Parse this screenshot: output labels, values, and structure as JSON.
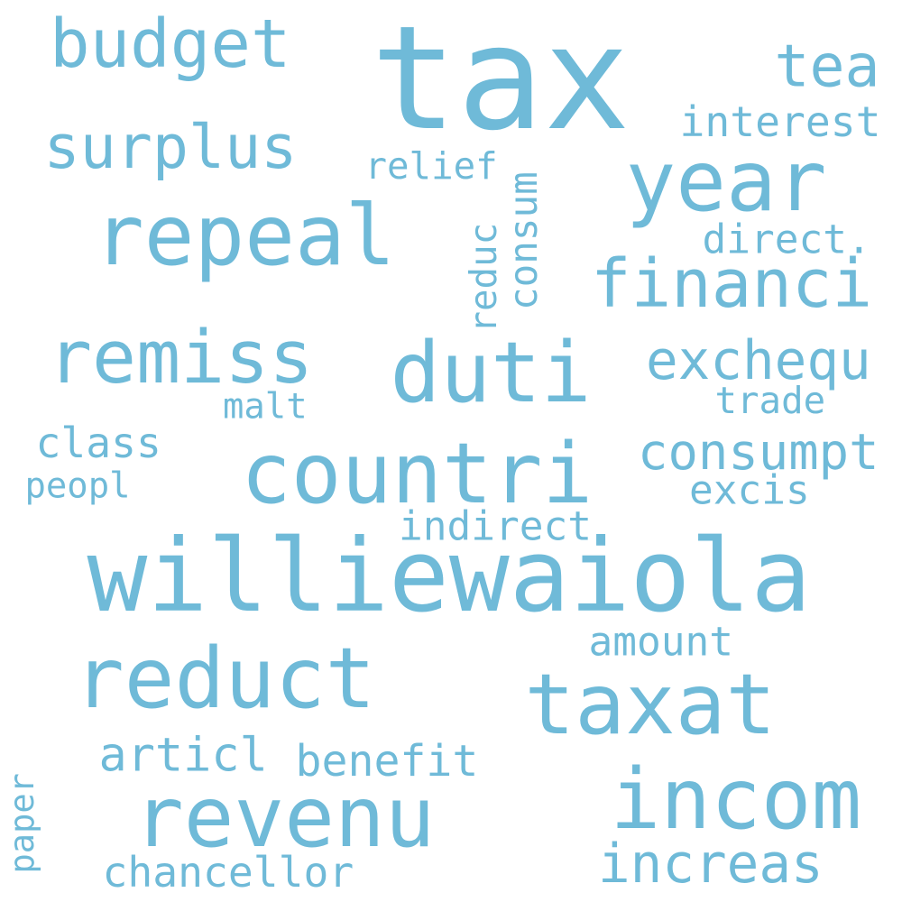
{
  "word_color": "#6fbad8",
  "words": [
    {
      "id": "tax",
      "text": "tax"
    },
    {
      "id": "williewaiola",
      "text": "williewaiola"
    },
    {
      "id": "duti",
      "text": "duti"
    },
    {
      "id": "countri",
      "text": "countri"
    },
    {
      "id": "repeal",
      "text": "repeal"
    },
    {
      "id": "remiss",
      "text": "remiss"
    },
    {
      "id": "reduct",
      "text": "reduct"
    },
    {
      "id": "taxat",
      "text": "taxat"
    },
    {
      "id": "incom",
      "text": "incom"
    },
    {
      "id": "revenu",
      "text": "revenu"
    },
    {
      "id": "year",
      "text": "year"
    },
    {
      "id": "financi",
      "text": "financi"
    },
    {
      "id": "surplus",
      "text": "surplus"
    },
    {
      "id": "budget",
      "text": "budget"
    },
    {
      "id": "exchequ",
      "text": "exchequ"
    },
    {
      "id": "consumpt",
      "text": "consumpt"
    },
    {
      "id": "increas",
      "text": "increas"
    },
    {
      "id": "tea",
      "text": "tea"
    },
    {
      "id": "interest",
      "text": "interest"
    },
    {
      "id": "relief",
      "text": "relief"
    },
    {
      "id": "direct",
      "text": "direct."
    },
    {
      "id": "class",
      "text": "class"
    },
    {
      "id": "peopl",
      "text": "peopl"
    },
    {
      "id": "malt",
      "text": "malt"
    },
    {
      "id": "trade",
      "text": "trade"
    },
    {
      "id": "excis",
      "text": "excis"
    },
    {
      "id": "indirect",
      "text": "indirect"
    },
    {
      "id": "amount",
      "text": "amount"
    },
    {
      "id": "articl",
      "text": "articl"
    },
    {
      "id": "benefit",
      "text": "benefit"
    },
    {
      "id": "chancellor",
      "text": "chancellor"
    },
    {
      "id": "reduc",
      "text": "reduc"
    },
    {
      "id": "consum",
      "text": "consum"
    },
    {
      "id": "paper",
      "text": "paper"
    }
  ]
}
